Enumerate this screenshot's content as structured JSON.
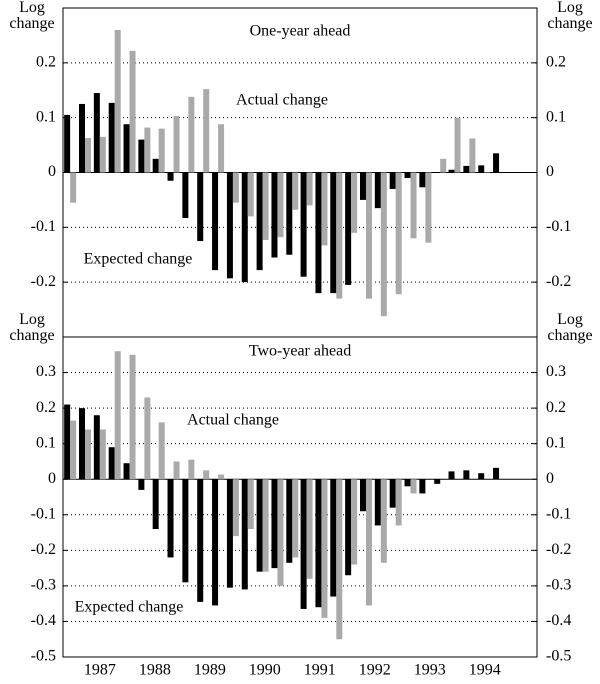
{
  "chart_data": [
    {
      "type": "bar",
      "title": "One-year ahead",
      "ylabel": "Log change",
      "x": [
        1986.96,
        1987.23,
        1987.5,
        1987.77,
        1988.04,
        1988.31,
        1988.57,
        1988.84,
        1989.11,
        1989.38,
        1989.65,
        1989.92,
        1990.19,
        1990.46,
        1990.73,
        1991.0,
        1991.26,
        1991.53,
        1991.8,
        1992.07,
        1992.34,
        1992.61,
        1992.88,
        1993.15,
        1993.42,
        1993.69,
        1993.95,
        1994.22,
        1994.49,
        1994.76
      ],
      "series": [
        {
          "name": "Expected change",
          "color": "#000000",
          "values": [
            0.105,
            0.125,
            0.145,
            0.127,
            0.088,
            0.06,
            0.025,
            -0.015,
            -0.083,
            -0.125,
            -0.178,
            -0.193,
            -0.2,
            -0.178,
            -0.155,
            -0.15,
            -0.19,
            -0.22,
            -0.22,
            -0.205,
            -0.05,
            -0.065,
            -0.03,
            -0.01,
            -0.027,
            0.0,
            0.005,
            0.012,
            0.013,
            0.035
          ]
        },
        {
          "name": "Actual change",
          "color": "#aaaaaa",
          "values": [
            -0.055,
            0.063,
            0.065,
            0.26,
            0.222,
            0.082,
            0.08,
            0.103,
            0.138,
            0.152,
            0.088,
            -0.055,
            -0.08,
            -0.123,
            -0.118,
            -0.068,
            -0.06,
            -0.133,
            -0.23,
            -0.11,
            -0.23,
            -0.262,
            -0.222,
            -0.12,
            -0.128,
            0.025,
            0.1,
            0.062,
            0.0,
            null
          ]
        }
      ],
      "xlim": [
        1986.83,
        1995.45
      ],
      "ylim": [
        -0.3,
        0.3
      ],
      "yticks": [
        -0.2,
        -0.1,
        0,
        0.1,
        0.2
      ],
      "grid": true
    },
    {
      "type": "bar",
      "title": "Two-year ahead",
      "ylabel": "Log change",
      "x": [
        1986.96,
        1987.23,
        1987.5,
        1987.77,
        1988.04,
        1988.31,
        1988.57,
        1988.84,
        1989.11,
        1989.38,
        1989.65,
        1989.92,
        1990.19,
        1990.46,
        1990.73,
        1991.0,
        1991.26,
        1991.53,
        1991.8,
        1992.07,
        1992.34,
        1992.61,
        1992.88,
        1993.15,
        1993.42,
        1993.69,
        1993.95,
        1994.22,
        1994.49,
        1994.76
      ],
      "series": [
        {
          "name": "Expected change",
          "color": "#000000",
          "values": [
            0.21,
            0.2,
            0.18,
            0.09,
            0.045,
            -0.03,
            -0.14,
            -0.22,
            -0.29,
            -0.345,
            -0.355,
            -0.305,
            -0.31,
            -0.26,
            -0.25,
            -0.235,
            -0.365,
            -0.36,
            -0.33,
            -0.27,
            -0.09,
            -0.13,
            -0.08,
            -0.02,
            -0.04,
            -0.013,
            0.022,
            0.025,
            0.017,
            0.032
          ]
        },
        {
          "name": "Actual change",
          "color": "#aaaaaa",
          "values": [
            0.165,
            0.14,
            0.14,
            0.36,
            0.35,
            0.23,
            0.16,
            0.05,
            0.055,
            0.025,
            0.013,
            -0.16,
            -0.14,
            -0.26,
            -0.3,
            -0.22,
            -0.28,
            -0.39,
            -0.45,
            -0.24,
            -0.355,
            -0.235,
            -0.13,
            -0.04,
            null,
            null,
            null,
            null,
            null,
            null
          ]
        }
      ],
      "xlim": [
        1986.83,
        1995.45
      ],
      "ylim": [
        -0.5,
        0.4
      ],
      "yticks": [
        -0.5,
        -0.4,
        -0.3,
        -0.2,
        -0.1,
        0,
        0.1,
        0.2,
        0.3
      ],
      "grid": true,
      "xticks": [
        {
          "value": 1987.5,
          "label": "1987"
        },
        {
          "value": 1988.5,
          "label": "1988"
        },
        {
          "value": 1989.5,
          "label": "1989"
        },
        {
          "value": 1990.5,
          "label": "1990"
        },
        {
          "value": 1991.5,
          "label": "1991"
        },
        {
          "value": 1992.5,
          "label": "1992"
        },
        {
          "value": 1993.5,
          "label": "1993"
        },
        {
          "value": 1994.5,
          "label": "1994"
        }
      ]
    }
  ]
}
